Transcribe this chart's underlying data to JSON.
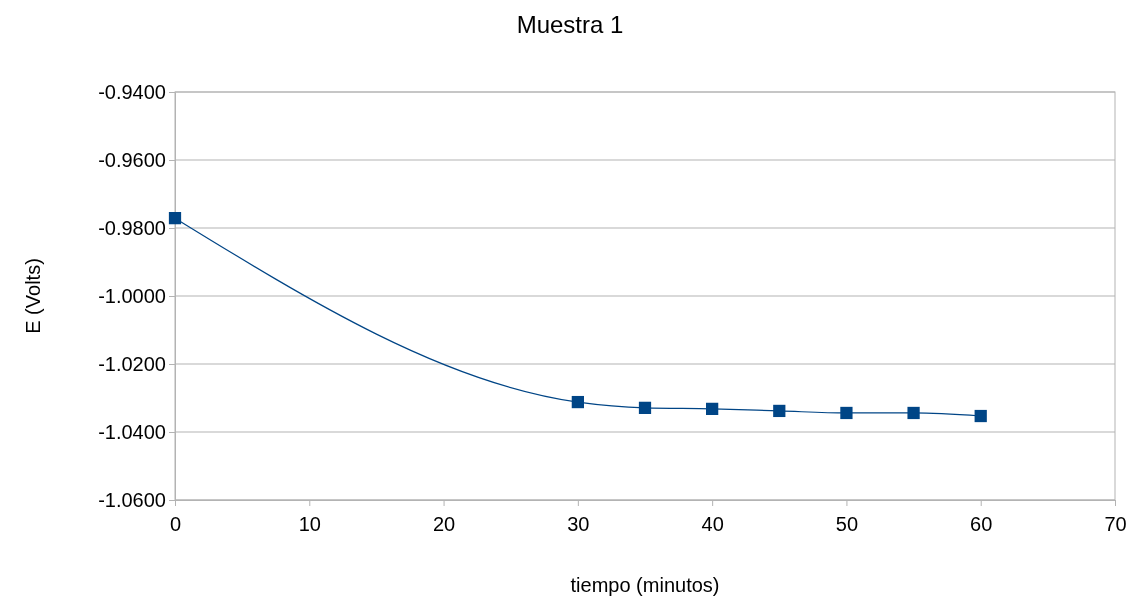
{
  "chart_data": {
    "type": "line",
    "title": "Muestra 1",
    "xlabel": "tiempo (minutos)",
    "ylabel": "E (Volts)",
    "x": [
      0,
      30,
      35,
      40,
      45,
      50,
      55,
      60
    ],
    "series": [
      {
        "color": "#004586",
        "values": [
          -0.9771,
          -1.0312,
          -1.0329,
          -1.0332,
          -1.0338,
          -1.0344,
          -1.0344,
          -1.0353
        ]
      }
    ],
    "xlim": [
      0,
      70
    ],
    "xticks": [
      0,
      10,
      20,
      30,
      40,
      50,
      60,
      70
    ],
    "ylim": [
      -1.06,
      -0.94
    ],
    "yticks": [
      {
        "value": -1.06,
        "label": "-1.0600"
      },
      {
        "value": -1.04,
        "label": "-1.0400"
      },
      {
        "value": -1.02,
        "label": "-1.0200"
      },
      {
        "value": -1.0,
        "label": "-1.0000"
      },
      {
        "value": -0.98,
        "label": "-0.9800"
      },
      {
        "value": -0.96,
        "label": "-0.9600"
      },
      {
        "value": -0.94,
        "label": "-0.9400"
      }
    ],
    "grid": "y",
    "marker": "square",
    "line_style": "solid"
  }
}
